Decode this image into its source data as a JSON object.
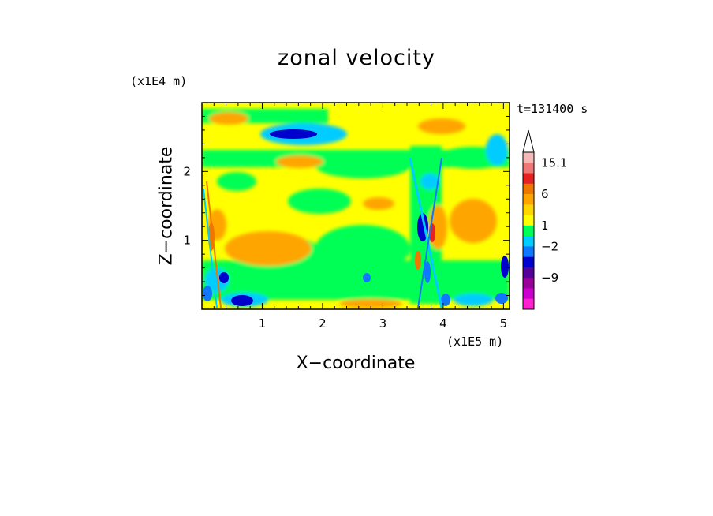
{
  "chart_data": {
    "type": "heatmap",
    "title": "zonal velocity",
    "xlabel": "X−coordinate",
    "ylabel": "Z−coordinate",
    "x_unit": "(x1E5 m)",
    "y_unit": "(x1E4 m)",
    "time_label": "t=131400 s",
    "xlim": [
      0,
      5.1
    ],
    "ylim": [
      0,
      3.0
    ],
    "x_ticks": [
      "1",
      "2",
      "3",
      "4",
      "5"
    ],
    "y_ticks": [
      "1",
      "2"
    ],
    "colorbar": {
      "labels": [
        "15.1",
        "6",
        "1",
        "−2",
        "−9"
      ],
      "colors": [
        "#f5b8b8",
        "#ee7777",
        "#e52222",
        "#ee7700",
        "#ffa500",
        "#ffd700",
        "#ffff00",
        "#00ff55",
        "#00ccff",
        "#1177ff",
        "#0000cc",
        "#550099",
        "#990099",
        "#cc00cc",
        "#ff22cc"
      ],
      "extend": "max"
    },
    "grid": false
  }
}
